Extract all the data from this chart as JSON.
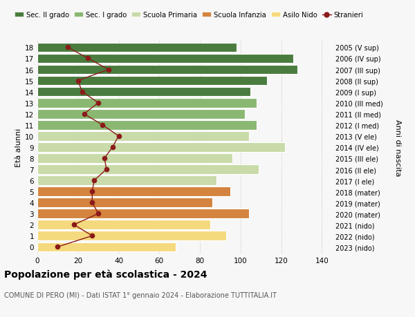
{
  "ages": [
    0,
    1,
    2,
    3,
    4,
    5,
    6,
    7,
    8,
    9,
    10,
    11,
    12,
    13,
    14,
    15,
    16,
    17,
    18
  ],
  "years": [
    "2023 (nido)",
    "2022 (nido)",
    "2021 (nido)",
    "2020 (mater)",
    "2019 (mater)",
    "2018 (mater)",
    "2017 (I ele)",
    "2016 (II ele)",
    "2015 (III ele)",
    "2014 (IV ele)",
    "2013 (V ele)",
    "2012 (I med)",
    "2011 (II med)",
    "2010 (III med)",
    "2009 (I sup)",
    "2008 (II sup)",
    "2007 (III sup)",
    "2006 (IV sup)",
    "2005 (V sup)"
  ],
  "bar_values": [
    68,
    93,
    85,
    104,
    86,
    95,
    88,
    109,
    96,
    122,
    104,
    108,
    102,
    108,
    105,
    113,
    128,
    126,
    98
  ],
  "bar_colors": [
    "#f5d97e",
    "#f5d97e",
    "#f5d97e",
    "#d4843e",
    "#d4843e",
    "#d4843e",
    "#c8dba8",
    "#c8dba8",
    "#c8dba8",
    "#c8dba8",
    "#c8dba8",
    "#8ab872",
    "#8ab872",
    "#8ab872",
    "#4a7c3f",
    "#4a7c3f",
    "#4a7c3f",
    "#4a7c3f",
    "#4a7c3f"
  ],
  "stranieri": [
    10,
    27,
    18,
    30,
    27,
    27,
    28,
    34,
    33,
    37,
    40,
    32,
    23,
    30,
    22,
    20,
    35,
    25,
    15
  ],
  "stranieri_color": "#8b1a1a",
  "xlim": [
    0,
    145
  ],
  "xticks": [
    0,
    20,
    40,
    60,
    80,
    100,
    120,
    140
  ],
  "title": "Popolazione per età scolastica - 2024",
  "subtitle": "COMUNE DI PERO (MI) - Dati ISTAT 1° gennaio 2024 - Elaborazione TUTTITALIA.IT",
  "ylabel": "Età alunni",
  "right_ylabel": "Anni di nascita",
  "legend_labels": [
    "Sec. II grado",
    "Sec. I grado",
    "Scuola Primaria",
    "Scuola Infanzia",
    "Asilo Nido",
    "Stranieri"
  ],
  "legend_colors": [
    "#4a7c3f",
    "#8ab872",
    "#c8dba8",
    "#d4843e",
    "#f5d97e",
    "#8b1a1a"
  ],
  "bg_color": "#f7f7f7",
  "grid_color": "#cccccc"
}
